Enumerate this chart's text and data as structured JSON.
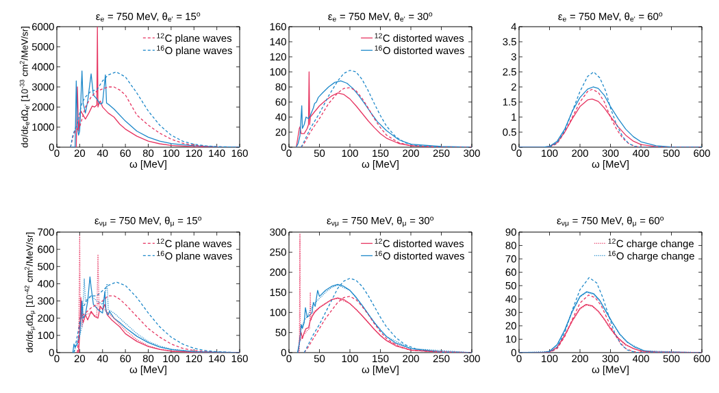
{
  "chart_data": [
    {
      "type": "line",
      "title": "ε$_{e}$ = 750 MeV, θ$_{e'}$ = 15$^{o}$",
      "xlabel": "ω [MeV]",
      "ylabel": "dσ/dε$_{e}$dΩ$_{e'}$ [10$^{-33}$ cm$^{2}$/MeV/sr]",
      "xlim": [
        0,
        160
      ],
      "ylim": [
        0,
        6000
      ],
      "xticks": [
        0,
        20,
        40,
        60,
        80,
        100,
        120,
        140,
        160
      ],
      "yticks": [
        0,
        1000,
        2000,
        3000,
        4000,
        5000,
        6000
      ],
      "legend": "top right",
      "series": [
        {
          "color": "#e6325f",
          "line_style": "solid",
          "x": [
            14,
            17,
            18,
            19,
            20,
            21,
            22,
            23,
            25,
            28,
            31,
            33,
            35,
            35.5,
            36,
            37,
            38,
            40,
            45,
            50,
            55,
            60,
            70,
            80,
            90,
            100,
            120,
            140,
            160
          ],
          "values": [
            0,
            0,
            3000,
            800,
            1400,
            1800,
            1700,
            1600,
            1400,
            1700,
            2050,
            2000,
            2100,
            6000,
            2000,
            2200,
            2300,
            2000,
            1700,
            1500,
            1150,
            900,
            550,
            300,
            170,
            90,
            30,
            10,
            0
          ]
        },
        {
          "color": "#1b87c9",
          "line_style": "solid",
          "x": [
            13,
            16,
            17,
            18,
            19,
            20,
            22,
            23,
            25,
            27,
            30,
            32,
            35,
            38,
            40,
            42.5,
            43.5,
            46,
            50,
            55,
            60,
            70,
            80,
            90,
            100,
            120,
            140,
            160
          ],
          "values": [
            0,
            0,
            3300,
            1000,
            600,
            800,
            3800,
            2200,
            1700,
            2300,
            3650,
            2600,
            2400,
            2150,
            2200,
            3600,
            2200,
            2100,
            1900,
            1600,
            1300,
            800,
            500,
            300,
            180,
            70,
            20,
            0
          ]
        },
        {
          "name": "$^{12}$C plane waves",
          "color": "#e6325f",
          "line_style": "dashed",
          "x": [
            12,
            14,
            16,
            20,
            25,
            30,
            35,
            40,
            45,
            50,
            55,
            60,
            70,
            80,
            90,
            100,
            110,
            120,
            130,
            140,
            160
          ],
          "values": [
            0,
            500,
            800,
            1000,
            2000,
            2500,
            2800,
            2900,
            3000,
            3000,
            2850,
            2600,
            1600,
            1100,
            700,
            400,
            200,
            100,
            50,
            20,
            0
          ]
        },
        {
          "name": "$^{16}$O plane waves",
          "color": "#1b87c9",
          "line_style": "dashed",
          "x": [
            12,
            14,
            18,
            22,
            25,
            30,
            35,
            40,
            45,
            52,
            60,
            70,
            80,
            90,
            100,
            110,
            120,
            130,
            140,
            160
          ],
          "values": [
            0,
            600,
            1200,
            2200,
            2500,
            2800,
            2850,
            3300,
            3600,
            3750,
            3500,
            2700,
            1800,
            1100,
            600,
            300,
            150,
            70,
            30,
            0
          ]
        }
      ]
    },
    {
      "type": "line",
      "title": "ε$_{e}$ = 750 MeV, θ$_{e'}$ = 30$^{o}$",
      "xlabel": "ω [MeV]",
      "xlim": [
        0,
        300
      ],
      "ylim": [
        0,
        160
      ],
      "xticks": [
        0,
        50,
        100,
        150,
        200,
        250,
        300
      ],
      "yticks": [
        0,
        20,
        40,
        60,
        80,
        100,
        120,
        140,
        160
      ],
      "legend": "top right",
      "series": [
        {
          "name": "$^{12}$C distorted waves",
          "color": "#e6325f",
          "line_style": "solid",
          "x": [
            12,
            15,
            17,
            18,
            20,
            25,
            30,
            32,
            33,
            34,
            35,
            40,
            50,
            60,
            70,
            80,
            90,
            100,
            110,
            120,
            130,
            140,
            150,
            160,
            180,
            200,
            250,
            300
          ],
          "values": [
            0,
            15,
            25,
            27,
            18,
            18,
            25,
            30,
            100,
            30,
            40,
            45,
            55,
            62,
            68,
            72,
            70,
            64,
            55,
            45,
            35,
            26,
            18,
            12,
            5,
            2,
            0,
            0
          ]
        },
        {
          "name": "$^{16}$O distorted waves",
          "color": "#1b87c9",
          "line_style": "solid",
          "x": [
            12,
            15,
            18,
            21,
            22,
            25,
            28,
            32,
            35,
            40,
            42,
            45,
            48,
            55,
            65,
            75,
            85,
            95,
            105,
            115,
            125,
            135,
            145,
            160,
            180,
            200,
            250,
            300
          ],
          "values": [
            0,
            5,
            15,
            55,
            25,
            30,
            40,
            38,
            42,
            52,
            58,
            60,
            66,
            72,
            80,
            86,
            88,
            85,
            78,
            68,
            57,
            45,
            34,
            22,
            10,
            4,
            1,
            0
          ]
        },
        {
          "color": "#e6325f",
          "line_style": "dashed",
          "x": [
            20,
            25,
            35,
            50,
            65,
            80,
            90,
            100,
            110,
            120,
            130,
            140,
            150,
            160,
            180,
            200,
            250,
            300
          ],
          "values": [
            0,
            5,
            20,
            38,
            58,
            72,
            78,
            79,
            75,
            65,
            52,
            38,
            26,
            16,
            6,
            2,
            0,
            0
          ]
        },
        {
          "color": "#1b87c9",
          "line_style": "dashed",
          "x": [
            20,
            25,
            35,
            50,
            65,
            80,
            90,
            100,
            110,
            120,
            130,
            140,
            150,
            160,
            175,
            190,
            210,
            250,
            300
          ],
          "values": [
            0,
            8,
            25,
            45,
            68,
            88,
            98,
            102,
            100,
            90,
            75,
            58,
            42,
            28,
            14,
            6,
            2,
            0,
            0
          ]
        }
      ]
    },
    {
      "type": "line",
      "title": "ε$_{e}$ = 750 MeV, θ$_{e'}$ = 60$^{o}$",
      "xlabel": "ω [MeV]",
      "xlim": [
        0,
        600
      ],
      "ylim": [
        0,
        4
      ],
      "xticks": [
        0,
        100,
        200,
        300,
        400,
        500,
        600
      ],
      "yticks": [
        0,
        0.5,
        1,
        1.5,
        2,
        2.5,
        3,
        3.5,
        4
      ],
      "series": [
        {
          "color": "#e6325f",
          "line_style": "solid",
          "x": [
            0,
            80,
            100,
            125,
            150,
            175,
            200,
            225,
            240,
            260,
            280,
            300,
            325,
            350,
            375,
            400,
            450,
            500,
            600
          ],
          "values": [
            0,
            0,
            0.02,
            0.15,
            0.5,
            0.95,
            1.35,
            1.57,
            1.6,
            1.52,
            1.3,
            1.02,
            0.68,
            0.4,
            0.2,
            0.09,
            0.02,
            0,
            0
          ]
        },
        {
          "color": "#1b87c9",
          "line_style": "solid",
          "x": [
            0,
            80,
            100,
            125,
            150,
            175,
            200,
            225,
            243,
            260,
            280,
            300,
            325,
            350,
            375,
            400,
            450,
            500,
            600
          ],
          "values": [
            0,
            0,
            0.03,
            0.2,
            0.6,
            1.2,
            1.65,
            1.93,
            2.0,
            1.95,
            1.72,
            1.35,
            0.95,
            0.6,
            0.35,
            0.18,
            0.05,
            0.01,
            0
          ]
        },
        {
          "color": "#e6325f",
          "line_style": "dashed",
          "x": [
            100,
            125,
            150,
            175,
            200,
            225,
            240,
            260,
            280,
            300,
            320,
            340,
            360,
            380,
            400,
            600
          ],
          "values": [
            0,
            0.12,
            0.5,
            1.0,
            1.5,
            1.85,
            1.92,
            1.82,
            1.5,
            1.0,
            0.6,
            0.3,
            0.12,
            0.03,
            0,
            0
          ]
        },
        {
          "color": "#1b87c9",
          "line_style": "dashed",
          "x": [
            100,
            125,
            150,
            175,
            200,
            225,
            245,
            265,
            285,
            300,
            320,
            340,
            360,
            380,
            400,
            600
          ],
          "values": [
            0,
            0.15,
            0.55,
            1.2,
            1.85,
            2.35,
            2.5,
            2.3,
            1.85,
            1.3,
            0.75,
            0.35,
            0.12,
            0.03,
            0,
            0
          ]
        }
      ]
    },
    {
      "type": "line",
      "title": "ε$_{νμ}$ = 750 MeV, θ$_{μ}$ = 15$^{o}$",
      "xlabel": "ω [MeV]",
      "ylabel": "dσ/dε$_{μ}$dΩ$_{μ}$ [10$^{-42}$ cm$^{2}$/MeV/sr]",
      "xlim": [
        0,
        160
      ],
      "ylim": [
        0,
        700
      ],
      "xticks": [
        0,
        20,
        40,
        60,
        80,
        100,
        120,
        140,
        160
      ],
      "yticks": [
        0,
        100,
        200,
        300,
        400,
        500,
        600,
        700
      ],
      "legend": "top right",
      "series": [
        {
          "color": "#e6325f",
          "line_style": "solid",
          "x": [
            17,
            19,
            20,
            21,
            22,
            23,
            25,
            27,
            30,
            33,
            36,
            38,
            40,
            42,
            44,
            48,
            55,
            60,
            70,
            80,
            90,
            100,
            120,
            160
          ],
          "values": [
            0,
            0,
            100,
            320,
            200,
            175,
            220,
            190,
            240,
            210,
            200,
            270,
            250,
            280,
            220,
            190,
            150,
            110,
            65,
            35,
            18,
            8,
            2,
            0
          ]
        },
        {
          "color": "#1b87c9",
          "line_style": "solid",
          "x": [
            14,
            15,
            16,
            18,
            20,
            22,
            23,
            25,
            27,
            29,
            30,
            32,
            36,
            40,
            42,
            43,
            45,
            46,
            50,
            55,
            60,
            70,
            80,
            90,
            100,
            120,
            160
          ],
          "values": [
            0,
            50,
            30,
            50,
            100,
            300,
            200,
            220,
            300,
            440,
            380,
            280,
            250,
            230,
            355,
            240,
            220,
            240,
            200,
            175,
            145,
            95,
            58,
            32,
            18,
            5,
            0
          ]
        },
        {
          "name": "$^{12}$C plane waves",
          "color": "#e6325f",
          "line_style": "dashed",
          "x": [
            18,
            20,
            25,
            30,
            35,
            40,
            45,
            50,
            55,
            60,
            70,
            80,
            90,
            100,
            110,
            120,
            140,
            160
          ],
          "values": [
            0,
            200,
            230,
            260,
            280,
            300,
            330,
            330,
            310,
            280,
            210,
            140,
            90,
            50,
            25,
            12,
            3,
            0
          ]
        },
        {
          "name": "$^{16}$O plane waves",
          "color": "#1b87c9",
          "line_style": "dashed",
          "x": [
            15,
            18,
            22,
            26,
            30,
            35,
            40,
            45,
            52,
            60,
            70,
            80,
            90,
            100,
            110,
            120,
            130,
            140,
            160
          ],
          "values": [
            0,
            100,
            250,
            300,
            330,
            330,
            360,
            390,
            410,
            390,
            320,
            230,
            150,
            90,
            50,
            25,
            12,
            5,
            0
          ]
        },
        {
          "color": "#e6325f",
          "line_style": "dotted",
          "x": [
            19,
            20,
            20.5,
            22,
            25,
            30,
            35,
            36,
            37,
            40,
            45,
            50,
            60,
            70,
            80,
            90,
            100,
            120,
            160
          ],
          "values": [
            0,
            680,
            200,
            150,
            220,
            230,
            210,
            570,
            250,
            260,
            230,
            200,
            130,
            75,
            40,
            20,
            10,
            2,
            0
          ]
        },
        {
          "color": "#1b87c9",
          "line_style": "dotted",
          "x": [
            15,
            17,
            20,
            22,
            24,
            25,
            28,
            30,
            35,
            40,
            44,
            45,
            50,
            60,
            70,
            80,
            90,
            100,
            120,
            160
          ],
          "values": [
            0,
            50,
            100,
            150,
            430,
            300,
            320,
            330,
            300,
            280,
            400,
            250,
            230,
            170,
            110,
            65,
            38,
            20,
            6,
            0
          ]
        }
      ]
    },
    {
      "type": "line",
      "title": "ε$_{νμ}$ = 750 MeV, θ$_{μ}$ = 30$^{o}$",
      "xlabel": "ω [MeV]",
      "xlim": [
        0,
        300
      ],
      "ylim": [
        0,
        300
      ],
      "xticks": [
        0,
        50,
        100,
        150,
        200,
        250,
        300
      ],
      "yticks": [
        0,
        50,
        100,
        150,
        200,
        250,
        300
      ],
      "legend": "top right",
      "series": [
        {
          "name": "$^{12}$C distorted waves",
          "color": "#e6325f",
          "line_style": "solid",
          "x": [
            15,
            18,
            20,
            22,
            25,
            28,
            32,
            35,
            38,
            42,
            50,
            60,
            70,
            80,
            90,
            100,
            110,
            120,
            130,
            140,
            150,
            160,
            175,
            200,
            250,
            300
          ],
          "values": [
            0,
            40,
            50,
            35,
            50,
            60,
            62,
            80,
            90,
            100,
            112,
            122,
            132,
            136,
            132,
            122,
            108,
            92,
            75,
            58,
            42,
            30,
            17,
            6,
            1,
            0
          ]
        },
        {
          "name": "$^{16}$O distorted waves",
          "color": "#1b87c9",
          "line_style": "solid",
          "x": [
            14,
            18,
            20,
            22,
            25,
            27,
            30,
            35,
            38,
            40,
            43,
            47,
            50,
            60,
            70,
            80,
            90,
            100,
            110,
            120,
            130,
            140,
            150,
            160,
            175,
            200,
            250,
            300
          ],
          "values": [
            0,
            30,
            70,
            60,
            75,
            112,
            88,
            95,
            100,
            125,
            115,
            155,
            140,
            155,
            165,
            170,
            165,
            155,
            138,
            118,
            96,
            75,
            56,
            40,
            24,
            10,
            2,
            0
          ]
        },
        {
          "color": "#e6325f",
          "line_style": "dashed",
          "x": [
            25,
            30,
            40,
            50,
            60,
            70,
            80,
            90,
            100,
            110,
            120,
            130,
            140,
            150,
            160,
            180,
            200,
            250,
            300
          ],
          "values": [
            0,
            10,
            35,
            60,
            85,
            105,
            125,
            137,
            140,
            132,
            115,
            95,
            72,
            52,
            35,
            15,
            6,
            1,
            0
          ]
        },
        {
          "color": "#1b87c9",
          "line_style": "dashed",
          "x": [
            25,
            30,
            40,
            50,
            60,
            70,
            80,
            90,
            100,
            110,
            120,
            130,
            140,
            150,
            160,
            175,
            190,
            210,
            250,
            300
          ],
          "values": [
            0,
            15,
            45,
            70,
            100,
            130,
            160,
            178,
            185,
            180,
            165,
            142,
            115,
            88,
            64,
            38,
            20,
            8,
            1,
            0
          ]
        },
        {
          "color": "#e6325f",
          "line_style": "dotted",
          "x": [
            17,
            18,
            18.5,
            22,
            30,
            34,
            35,
            36,
            40,
            50,
            60,
            70,
            80,
            100,
            120,
            140,
            160,
            200,
            300
          ],
          "values": [
            0,
            295,
            30,
            40,
            55,
            60,
            150,
            80,
            100,
            113,
            123,
            132,
            135,
            122,
            92,
            58,
            30,
            6,
            0
          ]
        },
        {
          "color": "#1b87c9",
          "line_style": "dotted",
          "x": [
            15,
            20,
            25,
            30,
            40,
            50,
            60,
            70,
            80,
            100,
            120,
            140,
            160,
            200,
            300
          ],
          "values": [
            0,
            60,
            80,
            90,
            120,
            135,
            150,
            162,
            168,
            155,
            118,
            75,
            40,
            10,
            0
          ]
        }
      ]
    },
    {
      "type": "line",
      "title": "ε$_{νμ}$ = 750 MeV, θ$_{μ}$ = 60$^{o}$",
      "xlabel": "ω [MeV]",
      "xlim": [
        0,
        600
      ],
      "ylim": [
        0,
        90
      ],
      "xticks": [
        0,
        100,
        200,
        300,
        400,
        500,
        600
      ],
      "yticks": [
        0,
        10,
        20,
        30,
        40,
        50,
        60,
        70,
        80,
        90
      ],
      "legend": "top right",
      "series": [
        {
          "color": "#e6325f",
          "line_style": "solid",
          "x": [
            0,
            80,
            100,
            125,
            150,
            175,
            200,
            220,
            240,
            260,
            280,
            300,
            325,
            350,
            375,
            400,
            450,
            600
          ],
          "values": [
            0,
            0,
            0.5,
            4,
            13,
            24,
            33,
            36,
            35,
            31,
            25,
            18,
            11,
            6,
            3,
            1.2,
            0.2,
            0
          ]
        },
        {
          "color": "#1b87c9",
          "line_style": "solid",
          "x": [
            0,
            80,
            100,
            125,
            150,
            175,
            200,
            222,
            245,
            265,
            285,
            305,
            330,
            355,
            380,
            410,
            450,
            600
          ],
          "values": [
            0,
            0.2,
            1,
            6,
            17,
            31,
            42,
            45.5,
            44,
            39,
            31,
            23,
            14,
            8,
            4,
            1.5,
            0.4,
            0
          ]
        },
        {
          "color": "#e6325f",
          "line_style": "dashed",
          "x": [
            0,
            100,
            125,
            150,
            175,
            200,
            228,
            250,
            270,
            290,
            310,
            330,
            350,
            375,
            400,
            600
          ],
          "values": [
            0,
            0,
            3,
            12,
            25,
            37,
            43,
            41,
            35,
            25,
            15,
            8,
            3,
            0.8,
            0,
            0
          ]
        },
        {
          "color": "#1b87c9",
          "line_style": "dashed",
          "x": [
            0,
            100,
            125,
            150,
            175,
            200,
            230,
            255,
            275,
            295,
            315,
            335,
            355,
            380,
            400,
            600
          ],
          "values": [
            0,
            0,
            4,
            15,
            32,
            47,
            56,
            52,
            41,
            27,
            14,
            6,
            2,
            0.3,
            0,
            0
          ]
        },
        {
          "name": "$^{12}$C charge change",
          "color": "#e6325f",
          "line_style": "dotted",
          "x": [
            0,
            100,
            125,
            150,
            175,
            200,
            220,
            240,
            260,
            280,
            300,
            325,
            350,
            400,
            600
          ],
          "values": [
            0,
            0.3,
            3.5,
            12.5,
            23.5,
            32.5,
            35.5,
            34.5,
            30.5,
            24.5,
            17.5,
            10.5,
            5.5,
            1,
            0
          ]
        },
        {
          "name": "$^{16}$O charge change",
          "color": "#1b87c9",
          "line_style": "dotted",
          "x": [
            0,
            100,
            125,
            150,
            175,
            200,
            222,
            245,
            265,
            285,
            305,
            330,
            355,
            410,
            600
          ],
          "values": [
            0,
            0.8,
            5.5,
            16.5,
            30.5,
            41.5,
            45,
            43.5,
            38.5,
            30.5,
            22.5,
            13.5,
            7.5,
            1.3,
            0
          ]
        }
      ]
    }
  ]
}
